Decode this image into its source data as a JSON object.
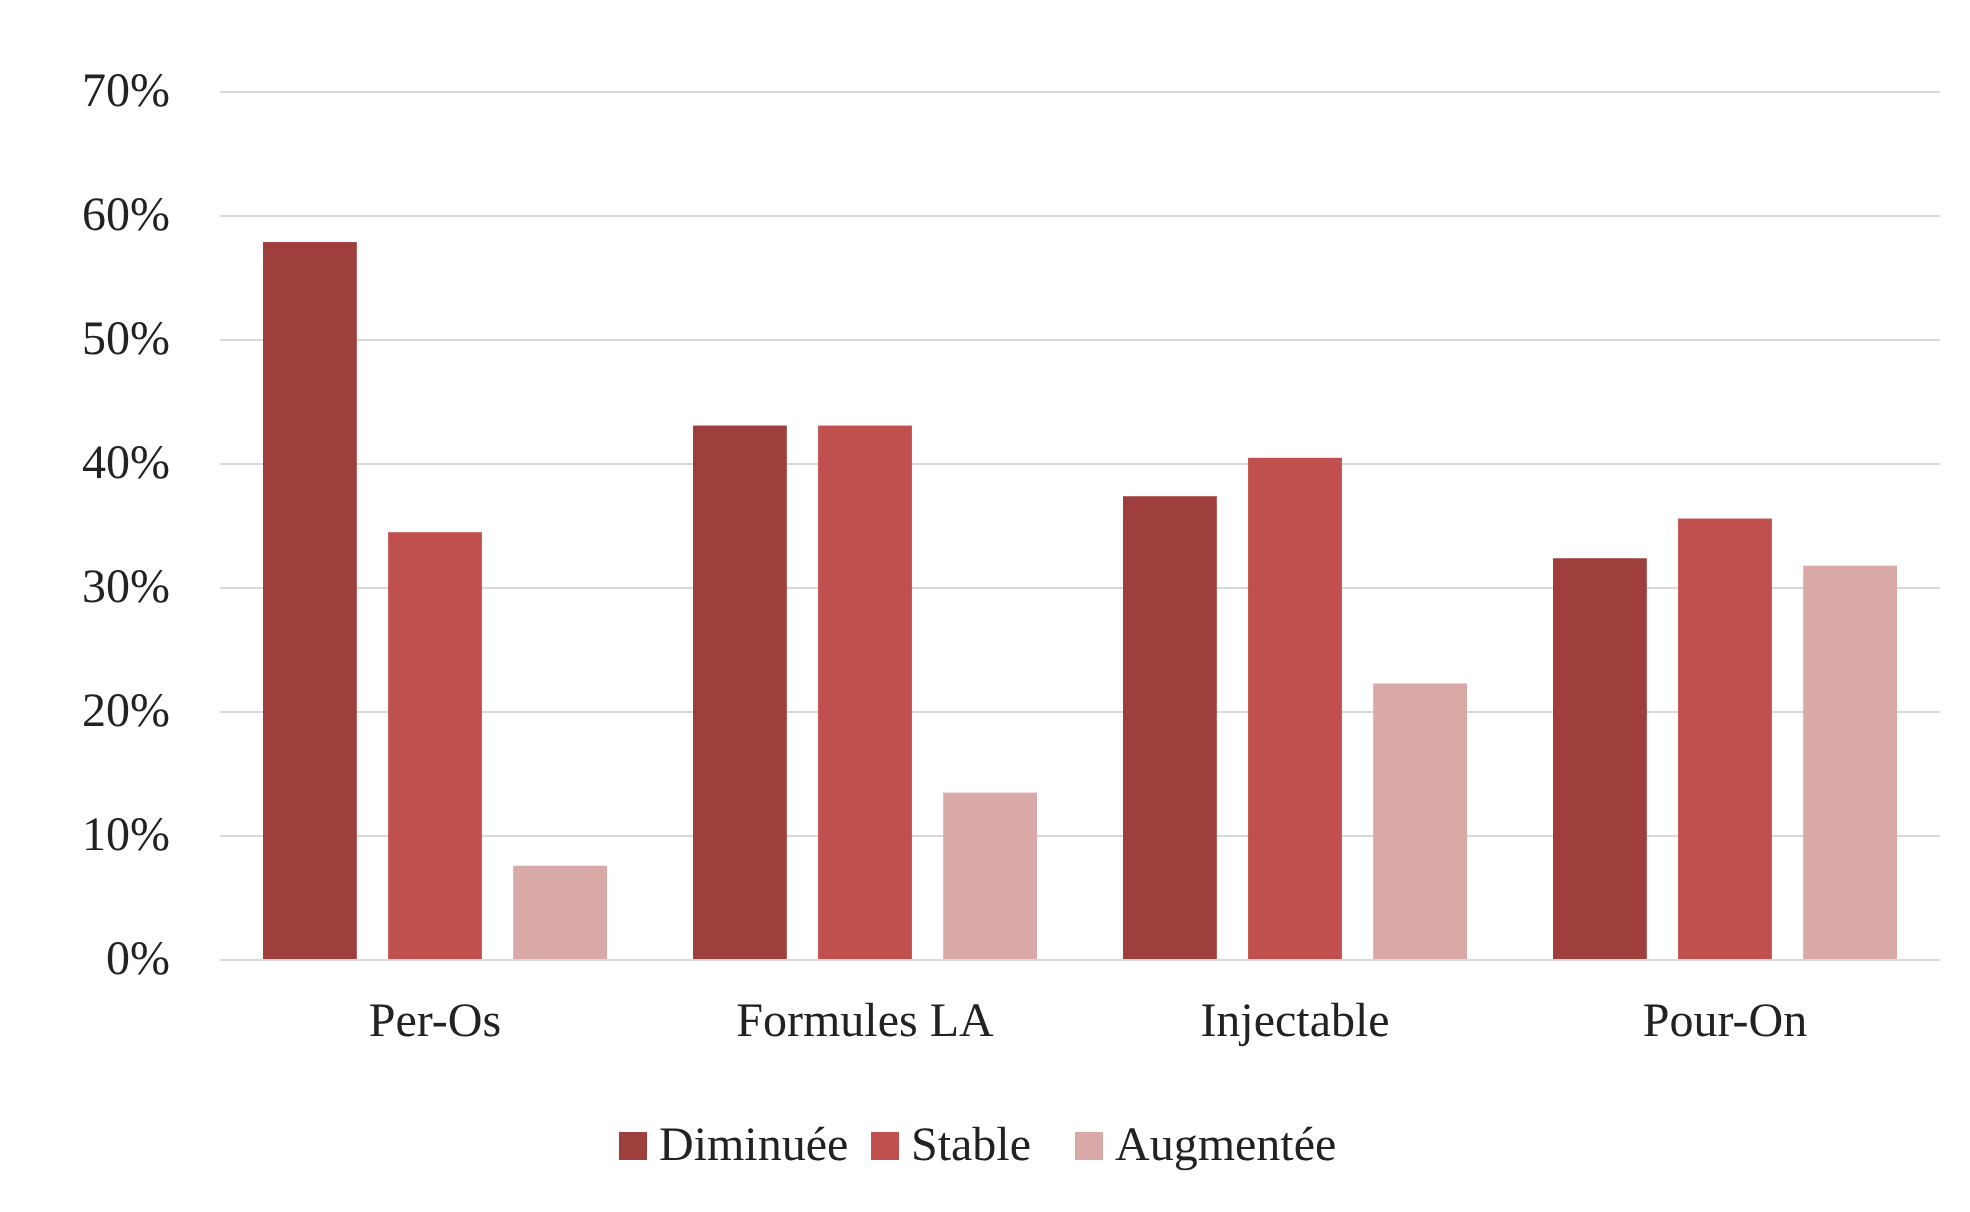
{
  "chart_data": {
    "type": "bar",
    "categories": [
      "Per-Os",
      "Formules LA",
      "Injectable",
      "Pour-On"
    ],
    "series": [
      {
        "name": "Diminuée",
        "color": "#9e3f3d",
        "values": [
          57.9,
          43.1,
          37.4,
          32.4
        ]
      },
      {
        "name": "Stable",
        "color": "#c0504d",
        "values": [
          34.5,
          43.1,
          40.5,
          35.6
        ]
      },
      {
        "name": "Augmentée",
        "color": "#d9a9a8",
        "values": [
          7.6,
          13.5,
          22.3,
          31.8
        ]
      }
    ],
    "ylim": [
      0,
      70
    ],
    "yticks": [
      {
        "value": 0,
        "label": "0%"
      },
      {
        "value": 10,
        "label": "10%"
      },
      {
        "value": 20,
        "label": "20%"
      },
      {
        "value": 30,
        "label": "30%"
      },
      {
        "value": 40,
        "label": "40%"
      },
      {
        "value": 50,
        "label": "50%"
      },
      {
        "value": 60,
        "label": "60%"
      },
      {
        "value": 70,
        "label": "70%"
      }
    ],
    "grid": "y",
    "legend": "bottom"
  }
}
